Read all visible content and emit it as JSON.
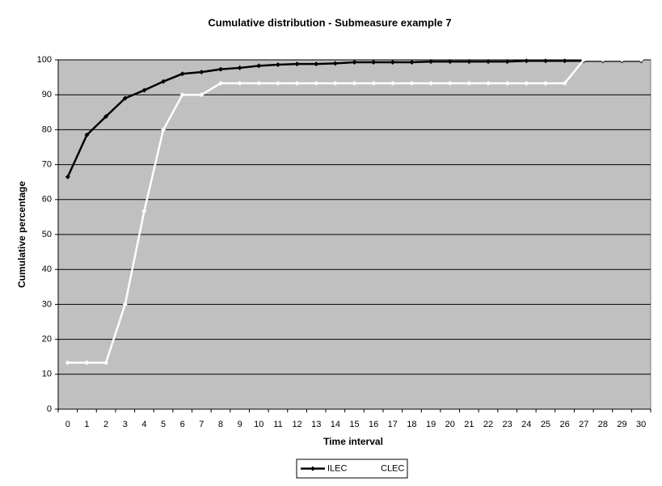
{
  "chart_data": {
    "type": "line",
    "title": "Cumulative distribution - Submeasure example 7",
    "x_label": "Time interval",
    "y_label": "Cumulative percentage",
    "categories": [
      "0",
      "1",
      "2",
      "3",
      "4",
      "5",
      "6",
      "7",
      "8",
      "9",
      "10",
      "11",
      "12",
      "13",
      "14",
      "15",
      "16",
      "17",
      "18",
      "19",
      "20",
      "21",
      "22",
      "23",
      "24",
      "25",
      "26",
      "27",
      "28",
      "29",
      "30"
    ],
    "series": [
      {
        "name": "ILEC",
        "color": "#000000",
        "values": [
          66.5,
          78.5,
          83.8,
          89,
          91.3,
          93.8,
          96,
          96.5,
          97.3,
          97.7,
          98.3,
          98.6,
          98.8,
          98.8,
          99,
          99.3,
          99.3,
          99.3,
          99.3,
          99.5,
          99.5,
          99.5,
          99.5,
          99.5,
          99.7,
          99.7,
          99.7,
          99.7,
          99.7,
          99.7,
          99.7
        ]
      },
      {
        "name": "CLEC",
        "color": "#ffffff",
        "values": [
          13.3,
          13.3,
          13.3,
          30,
          56.7,
          80,
          90,
          90,
          93.3,
          93.3,
          93.3,
          93.3,
          93.3,
          93.3,
          93.3,
          93.3,
          93.3,
          93.3,
          93.3,
          93.3,
          93.3,
          93.3,
          93.3,
          93.3,
          93.3,
          93.3,
          93.3,
          100,
          100,
          100,
          100
        ]
      }
    ],
    "ylim": [
      0,
      100
    ],
    "yticks": [
      0,
      10,
      20,
      30,
      40,
      50,
      60,
      70,
      80,
      90,
      100
    ],
    "grid": true,
    "plot_background": "#c0c0c0",
    "legend_position": "bottom"
  }
}
